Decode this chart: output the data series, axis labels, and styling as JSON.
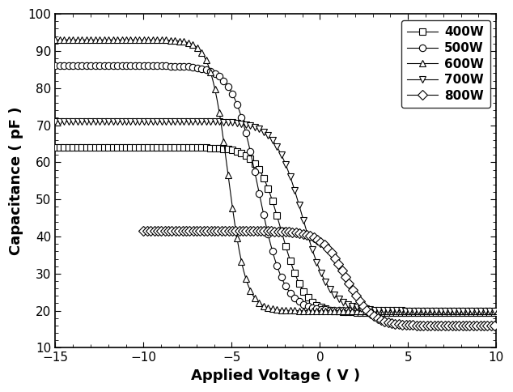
{
  "title": "",
  "xlabel": "Applied Voltage ( V )",
  "ylabel": "Capacitance ( pF )",
  "xlim": [
    -15,
    10
  ],
  "ylim": [
    10,
    100
  ],
  "yticks": [
    10,
    20,
    30,
    40,
    50,
    60,
    70,
    80,
    90,
    100
  ],
  "xticks": [
    -15,
    -10,
    -5,
    0,
    5,
    10
  ],
  "series": [
    {
      "label": "400W",
      "marker": "s",
      "C_acc": 64.0,
      "C_dep": 19.5,
      "V_mid": -2.2,
      "slope": 1.5,
      "n_points": 200,
      "markersize": 5.5
    },
    {
      "label": "500W",
      "marker": "o",
      "C_acc": 86.0,
      "C_dep": 20.0,
      "V_mid": -3.5,
      "slope": 1.4,
      "n_points": 200,
      "markersize": 6.0
    },
    {
      "label": "600W",
      "marker": "^",
      "C_acc": 93.0,
      "C_dep": 20.0,
      "V_mid": -5.2,
      "slope": 2.0,
      "n_points": 200,
      "markersize": 6.0
    },
    {
      "label": "700W",
      "marker": "v",
      "C_acc": 71.0,
      "C_dep": 20.0,
      "V_mid": -1.0,
      "slope": 1.3,
      "n_points": 200,
      "markersize": 5.5
    },
    {
      "label": "800W",
      "marker": "D",
      "C_acc": 41.5,
      "C_dep": 16.0,
      "V_mid": 1.5,
      "slope": 1.4,
      "V_flat_start": -10.0,
      "n_points": 200,
      "markersize": 6.5
    }
  ]
}
